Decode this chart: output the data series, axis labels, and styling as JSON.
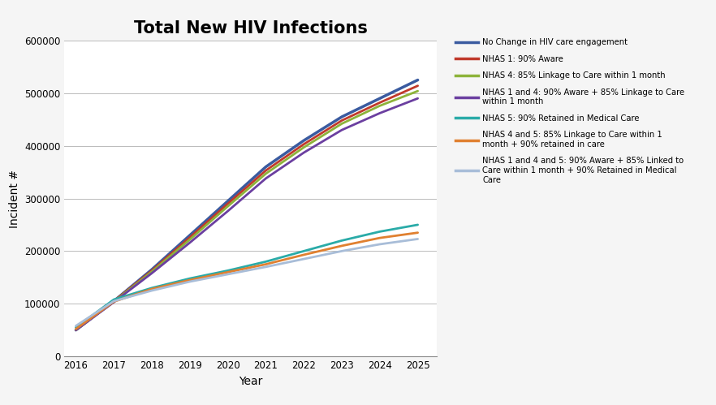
{
  "title": "Total New HIV Infections",
  "xlabel": "Year",
  "ylabel": "Incident #",
  "years": [
    2016,
    2017,
    2018,
    2019,
    2020,
    2021,
    2022,
    2023,
    2024,
    2025
  ],
  "series": [
    {
      "label": "No Change in HIV care engagement",
      "color": "#3A5BA0",
      "linewidth": 2.5,
      "values": [
        50000,
        105000,
        165000,
        230000,
        295000,
        360000,
        410000,
        455000,
        490000,
        525000
      ]
    },
    {
      "label": "NHAS 1: 90% Aware",
      "color": "#C0392B",
      "linewidth": 2.0,
      "values": [
        50000,
        105000,
        163000,
        226000,
        290000,
        353000,
        403000,
        448000,
        482000,
        514000
      ]
    },
    {
      "label": "NHAS 4: 85% Linkage to Care within 1 month",
      "color": "#8DB33A",
      "linewidth": 2.0,
      "values": [
        50000,
        104000,
        161000,
        222000,
        285000,
        347000,
        397000,
        442000,
        476000,
        504000
      ]
    },
    {
      "label": "NHAS 1 and 4: 90% Aware + 85% Linkage to Care\nwithin 1 month",
      "color": "#6B3FA0",
      "linewidth": 2.0,
      "values": [
        50000,
        103000,
        158000,
        216000,
        276000,
        338000,
        387000,
        430000,
        462000,
        490000
      ]
    },
    {
      "label": "NHAS 5: 90% Retained in Medical Care",
      "color": "#2AABA8",
      "linewidth": 2.0,
      "values": [
        55000,
        108000,
        130000,
        148000,
        163000,
        180000,
        200000,
        220000,
        237000,
        250000
      ]
    },
    {
      "label": "NHAS 4 and 5: 85% Linkage to Care within 1\nmonth + 90% retained in care",
      "color": "#E08030",
      "linewidth": 2.0,
      "values": [
        52000,
        104000,
        128000,
        145000,
        160000,
        175000,
        193000,
        210000,
        225000,
        235000
      ]
    },
    {
      "label": "NHAS 1 and 4 and 5: 90% Aware + 85% Linked to\nCare within 1 month + 90% Retained in Medical\nCare",
      "color": "#A8BDD8",
      "linewidth": 2.0,
      "values": [
        58000,
        105000,
        125000,
        142000,
        156000,
        170000,
        185000,
        200000,
        213000,
        223000
      ]
    }
  ],
  "ylim": [
    0,
    600000
  ],
  "yticks": [
    0,
    100000,
    200000,
    300000,
    400000,
    500000,
    600000
  ],
  "background_color": "#F5F5F5",
  "plot_bg_color": "#FFFFFF",
  "grid_color": "#BBBBBB",
  "figsize": [
    8.82,
    4.99
  ]
}
